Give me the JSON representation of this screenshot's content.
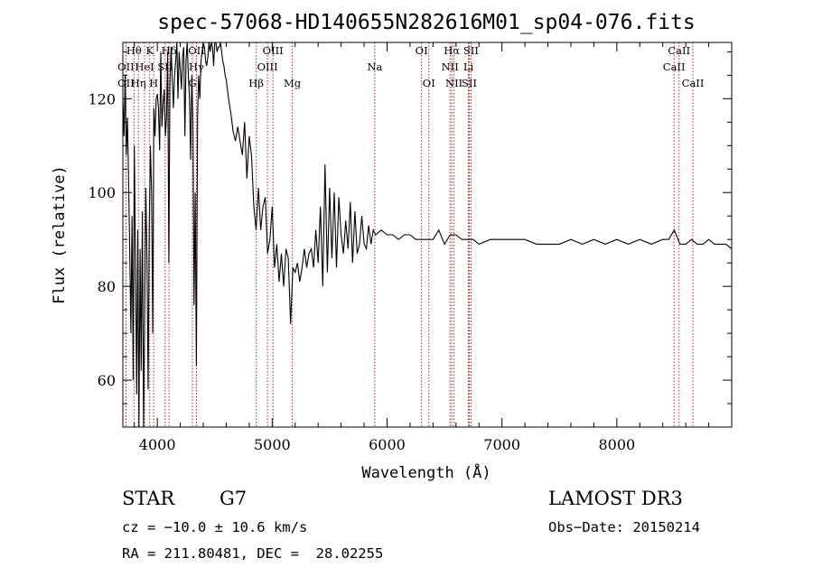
{
  "chart_data": {
    "type": "line",
    "title": "spec-57068-HD140655N282616M01_sp04-076.fits",
    "xlabel": "Wavelength (Å)",
    "ylabel": "Flux (relative)",
    "xlim": [
      3700,
      9000
    ],
    "ylim": [
      50,
      132
    ],
    "x_ticks": [
      4000,
      5000,
      6000,
      7000,
      8000
    ],
    "y_ticks": [
      60,
      80,
      100,
      120
    ],
    "grid": false,
    "legend": "none",
    "line_color": "#000000",
    "marker_color": "#b22222",
    "series": [
      {
        "x": [
          3700,
          3710,
          3720,
          3730,
          3740,
          3750,
          3760,
          3770,
          3780,
          3790,
          3800,
          3810,
          3820,
          3830,
          3840,
          3850,
          3860,
          3870,
          3880,
          3890,
          3900,
          3910,
          3920,
          3930,
          3940,
          3950,
          3960,
          3970,
          3980,
          3990,
          4000,
          4010,
          4020,
          4030,
          4040,
          4050,
          4060,
          4070,
          4080,
          4090,
          4100,
          4110,
          4120,
          4130,
          4140,
          4150,
          4160,
          4170,
          4180,
          4190,
          4200,
          4210,
          4220,
          4230,
          4240,
          4250,
          4260,
          4270,
          4280,
          4290,
          4300,
          4310,
          4320,
          4330,
          4340,
          4350,
          4360,
          4370,
          4380,
          4390,
          4400,
          4410,
          4420,
          4430,
          4440,
          4450,
          4460,
          4470,
          4480,
          4490,
          4500,
          4510,
          4520,
          4530,
          4540,
          4550,
          4560,
          4570,
          4580,
          4590,
          4600,
          4620,
          4640,
          4660,
          4680,
          4700,
          4720,
          4740,
          4760,
          4780,
          4800,
          4820,
          4840,
          4860,
          4880,
          4900,
          4920,
          4940,
          4960,
          4980,
          5000,
          5020,
          5040,
          5060,
          5080,
          5100,
          5120,
          5140,
          5160,
          5180,
          5200,
          5220,
          5240,
          5260,
          5280,
          5300,
          5320,
          5340,
          5360,
          5380,
          5400,
          5420,
          5440,
          5460,
          5480,
          5500,
          5520,
          5540,
          5560,
          5580,
          5600,
          5620,
          5640,
          5660,
          5680,
          5700,
          5720,
          5740,
          5760,
          5780,
          5800,
          5820,
          5840,
          5860,
          5880,
          5900,
          5950,
          6000,
          6050,
          6100,
          6150,
          6200,
          6250,
          6300,
          6350,
          6400,
          6450,
          6500,
          6550,
          6600,
          6650,
          6700,
          6750,
          6800,
          6900,
          7000,
          7100,
          7200,
          7300,
          7400,
          7500,
          7600,
          7700,
          7800,
          7900,
          8000,
          8100,
          8200,
          8300,
          8400,
          8450,
          8500,
          8550,
          8600,
          8650,
          8700,
          8750,
          8800,
          8850,
          8900,
          8950,
          9000
        ],
        "y": [
          120,
          112,
          125,
          108,
          116,
          102,
          88,
          70,
          95,
          60,
          110,
          85,
          57,
          92,
          50,
          88,
          62,
          96,
          50,
          75,
          101,
          86,
          58,
          92,
          110,
          100,
          70,
          118,
          112,
          120,
          121,
          118,
          109,
          130,
          114,
          119,
          122,
          112,
          116,
          130,
          85,
          123,
          131,
          124,
          118,
          125,
          128,
          132,
          120,
          130,
          126,
          122,
          129,
          131,
          112,
          128,
          133,
          125,
          120,
          107,
          125,
          115,
          76,
          100,
          63,
          116,
          125,
          120,
          128,
          130,
          132,
          131,
          128,
          127,
          129,
          132,
          130,
          133,
          131,
          127,
          133,
          132,
          130,
          131,
          131,
          133,
          130,
          128,
          127,
          125,
          124,
          120,
          117,
          113,
          111,
          114,
          111,
          108,
          115,
          103,
          112,
          108,
          97,
          92,
          101,
          92,
          97,
          99,
          87,
          90,
          97,
          84,
          89,
          81,
          87,
          80,
          88,
          86,
          72,
          84,
          83,
          85,
          81,
          84,
          88,
          84,
          87,
          88,
          84,
          92,
          85,
          97,
          80,
          106,
          83,
          101,
          86,
          100,
          84,
          99,
          91,
          87,
          94,
          88,
          98,
          85,
          96,
          87,
          89,
          95,
          89,
          88,
          93,
          89,
          92,
          91,
          92,
          91,
          91,
          90,
          91,
          91,
          90,
          90,
          90,
          90,
          92,
          89,
          91,
          91,
          90,
          90,
          90,
          89,
          90,
          90,
          90,
          90,
          89,
          89,
          89,
          90,
          89,
          90,
          89,
          90,
          89,
          90,
          89,
          90,
          90,
          92,
          89,
          89,
          90,
          89,
          89,
          90,
          89,
          89,
          89,
          88
        ]
      }
    ],
    "line_markers": [
      {
        "label": "Hθ",
        "x": 3797,
        "row": 0
      },
      {
        "label": "K",
        "x": 3934,
        "row": 0
      },
      {
        "label": "Hδ",
        "x": 4102,
        "row": 0
      },
      {
        "label": "OII",
        "x": 4341,
        "row": 0
      },
      {
        "label": "OIII",
        "x": 5007,
        "row": 0
      },
      {
        "label": "OI",
        "x": 6300,
        "row": 0
      },
      {
        "label": "Hα",
        "x": 6563,
        "row": 0
      },
      {
        "label": "SII",
        "x": 6731,
        "row": 0
      },
      {
        "label": "CaII",
        "x": 8542,
        "row": 0
      },
      {
        "label": "OII",
        "x": 3727,
        "row": 1
      },
      {
        "label": "HeI",
        "x": 3889,
        "row": 1
      },
      {
        "label": "SII",
        "x": 4068,
        "row": 1
      },
      {
        "label": "Hγ",
        "x": 4340,
        "row": 1
      },
      {
        "label": "OIII",
        "x": 4959,
        "row": 1
      },
      {
        "label": "Na",
        "x": 5893,
        "row": 1
      },
      {
        "label": "NII",
        "x": 6548,
        "row": 1
      },
      {
        "label": "Li",
        "x": 6708,
        "row": 1
      },
      {
        "label": "CaII",
        "x": 8498,
        "row": 1
      },
      {
        "label": "OII",
        "x": 3727,
        "row": 2
      },
      {
        "label": "Hη",
        "x": 3835,
        "row": 2
      },
      {
        "label": "H",
        "x": 3968,
        "row": 2
      },
      {
        "label": "G",
        "x": 4305,
        "row": 2
      },
      {
        "label": "Hβ",
        "x": 4861,
        "row": 2
      },
      {
        "label": "Mg",
        "x": 5175,
        "row": 2
      },
      {
        "label": "OI",
        "x": 6364,
        "row": 2
      },
      {
        "label": "NII",
        "x": 6583,
        "row": 2
      },
      {
        "label": "SII",
        "x": 6716,
        "row": 2
      },
      {
        "label": "CaII",
        "x": 8662,
        "row": 2
      }
    ]
  },
  "info": {
    "object_type": "STAR",
    "subclass": "G7",
    "survey": "LAMOST DR3",
    "cz": "cz = −10.0 ± 10.6 km/s",
    "obs_date": "Obs−Date: 20150214",
    "coords": "RA = 211.80481, DEC =  28.02255"
  }
}
